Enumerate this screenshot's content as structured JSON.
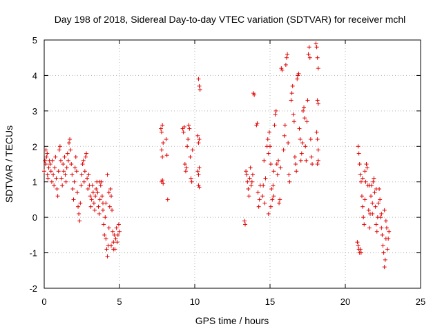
{
  "chart_data": {
    "type": "scatter",
    "title": "Day 198 of 2018, Sidereal Day-to-day VTEC variation (SDTVAR) for receiver mchl",
    "xlabel": "GPS time / hours",
    "ylabel": "SDTVAR / TECUs",
    "xlim": [
      0,
      25
    ],
    "ylim": [
      -2,
      5
    ],
    "xticks": [
      "0",
      "5",
      "10",
      "15",
      "20",
      "25"
    ],
    "yticks": [
      "-2",
      "-1",
      "0",
      "1",
      "2",
      "3",
      "4",
      "5"
    ],
    "grid": true,
    "marker": "+",
    "color": "#e00000",
    "series": [
      {
        "name": "SDTVAR",
        "points": [
          [
            0.0,
            1.3
          ],
          [
            0.05,
            1.6
          ],
          [
            0.1,
            1.5
          ],
          [
            0.12,
            1.9
          ],
          [
            0.15,
            1.7
          ],
          [
            0.2,
            1.8
          ],
          [
            0.22,
            1.2
          ],
          [
            0.25,
            1.1
          ],
          [
            0.3,
            1.4
          ],
          [
            0.35,
            1.6
          ],
          [
            0.4,
            1.5
          ],
          [
            0.45,
            1.3
          ],
          [
            0.5,
            1.0
          ],
          [
            0.55,
            1.6
          ],
          [
            0.6,
            1.2
          ],
          [
            0.65,
            0.9
          ],
          [
            0.7,
            1.4
          ],
          [
            0.75,
            1.7
          ],
          [
            0.8,
            1.1
          ],
          [
            0.85,
            0.8
          ],
          [
            0.9,
            0.6
          ],
          [
            0.95,
            1.3
          ],
          [
            1.0,
            1.9
          ],
          [
            1.05,
            2.0
          ],
          [
            1.1,
            1.6
          ],
          [
            1.15,
            1.1
          ],
          [
            1.2,
            0.9
          ],
          [
            1.25,
            1.5
          ],
          [
            1.3,
            1.3
          ],
          [
            1.35,
            1.7
          ],
          [
            1.4,
            1.2
          ],
          [
            1.45,
            1.0
          ],
          [
            1.5,
            1.4
          ],
          [
            1.55,
            1.8
          ],
          [
            1.6,
            1.6
          ],
          [
            1.65,
            2.1
          ],
          [
            1.7,
            2.2
          ],
          [
            1.75,
            1.9
          ],
          [
            1.8,
            1.5
          ],
          [
            1.85,
            1.2
          ],
          [
            1.9,
            0.8
          ],
          [
            1.95,
            0.5
          ],
          [
            2.0,
            1.0
          ],
          [
            2.05,
            1.4
          ],
          [
            2.1,
            1.7
          ],
          [
            2.15,
            1.3
          ],
          [
            2.2,
            0.7
          ],
          [
            2.25,
            0.3
          ],
          [
            2.3,
            0.1
          ],
          [
            2.35,
            -0.1
          ],
          [
            2.4,
            0.4
          ],
          [
            2.45,
            0.9
          ],
          [
            2.5,
            1.2
          ],
          [
            2.55,
            1.5
          ],
          [
            2.6,
            1.6
          ],
          [
            2.65,
            1.0
          ],
          [
            2.7,
            1.3
          ],
          [
            2.75,
            1.7
          ],
          [
            2.8,
            1.8
          ],
          [
            2.85,
            1.1
          ],
          [
            2.9,
            0.8
          ],
          [
            2.95,
            1.2
          ],
          [
            3.0,
            0.9
          ],
          [
            3.05,
            0.6
          ],
          [
            3.1,
            0.3
          ],
          [
            3.15,
            0.5
          ],
          [
            3.2,
            0.9
          ],
          [
            3.25,
            0.7
          ],
          [
            3.3,
            0.4
          ],
          [
            3.35,
            0.2
          ],
          [
            3.4,
            0.6
          ],
          [
            3.45,
            0.8
          ],
          [
            3.5,
            1.0
          ],
          [
            3.55,
            0.7
          ],
          [
            3.6,
            0.3
          ],
          [
            3.65,
            0.1
          ],
          [
            3.7,
            0.5
          ],
          [
            3.75,
            0.9
          ],
          [
            3.8,
            1.0
          ],
          [
            3.85,
            0.6
          ],
          [
            3.9,
            0.2
          ],
          [
            3.95,
            -0.2
          ],
          [
            4.0,
            -0.5
          ],
          [
            4.05,
            0.0
          ],
          [
            4.1,
            -0.6
          ],
          [
            4.15,
            -0.9
          ],
          [
            4.2,
            -1.1
          ],
          [
            4.25,
            -0.8
          ],
          [
            4.3,
            -0.3
          ],
          [
            4.35,
            0.3
          ],
          [
            4.4,
            0.8
          ],
          [
            4.45,
            0.6
          ],
          [
            4.5,
            0.2
          ],
          [
            4.55,
            -0.4
          ],
          [
            4.6,
            -0.7
          ],
          [
            4.65,
            -0.5
          ],
          [
            4.7,
            -0.9
          ],
          [
            4.75,
            -0.6
          ],
          [
            4.8,
            -0.3
          ],
          [
            4.85,
            -0.7
          ],
          [
            4.9,
            -0.5
          ],
          [
            4.95,
            -0.2
          ],
          [
            5.0,
            -0.4
          ],
          [
            4.2,
            1.2
          ],
          [
            4.3,
            0.7
          ],
          [
            4.1,
            0.4
          ],
          [
            3.7,
            1.0
          ],
          [
            3.9,
            0.4
          ],
          [
            4.45,
            -0.8
          ],
          [
            4.6,
            -0.9
          ],
          [
            7.75,
            2.5
          ],
          [
            7.8,
            2.4
          ],
          [
            7.85,
            2.6
          ],
          [
            7.8,
            1.9
          ],
          [
            7.85,
            1.7
          ],
          [
            7.9,
            2.1
          ],
          [
            7.8,
            1.0
          ],
          [
            7.85,
            1.05
          ],
          [
            7.9,
            0.95
          ],
          [
            8.1,
            2.2
          ],
          [
            8.15,
            1.75
          ],
          [
            8.2,
            0.5
          ],
          [
            9.2,
            2.5
          ],
          [
            9.25,
            2.4
          ],
          [
            9.3,
            2.55
          ],
          [
            9.35,
            1.5
          ],
          [
            9.4,
            1.3
          ],
          [
            9.45,
            1.4
          ],
          [
            9.5,
            2.0
          ],
          [
            9.55,
            2.2
          ],
          [
            9.6,
            2.6
          ],
          [
            9.65,
            2.5
          ],
          [
            9.7,
            1.7
          ],
          [
            9.75,
            1.1
          ],
          [
            9.8,
            1.0
          ],
          [
            9.85,
            1.9
          ],
          [
            10.25,
            3.9
          ],
          [
            10.3,
            3.7
          ],
          [
            10.35,
            3.6
          ],
          [
            10.2,
            2.3
          ],
          [
            10.25,
            2.1
          ],
          [
            10.3,
            2.2
          ],
          [
            10.2,
            1.3
          ],
          [
            10.25,
            1.2
          ],
          [
            10.3,
            1.4
          ],
          [
            10.25,
            0.9
          ],
          [
            10.3,
            0.85
          ],
          [
            13.3,
            -0.1
          ],
          [
            13.35,
            -0.2
          ],
          [
            13.4,
            1.3
          ],
          [
            13.45,
            1.2
          ],
          [
            13.5,
            1.0
          ],
          [
            13.55,
            0.8
          ],
          [
            13.6,
            0.6
          ],
          [
            13.65,
            1.1
          ],
          [
            13.7,
            1.4
          ],
          [
            13.75,
            0.9
          ],
          [
            13.8,
            1.0
          ],
          [
            13.85,
            1.2
          ],
          [
            13.9,
            3.5
          ],
          [
            13.95,
            3.45
          ],
          [
            14.1,
            2.6
          ],
          [
            14.15,
            2.65
          ],
          [
            14.2,
            0.7
          ],
          [
            14.25,
            0.3
          ],
          [
            14.3,
            0.5
          ],
          [
            14.35,
            0.9
          ],
          [
            14.6,
            1.6
          ],
          [
            14.7,
            1.1
          ],
          [
            14.8,
            2.0
          ],
          [
            14.85,
            2.2
          ],
          [
            14.9,
            1.8
          ],
          [
            14.95,
            2.4
          ],
          [
            15.0,
            2.0
          ],
          [
            15.05,
            1.5
          ],
          [
            15.1,
            0.8
          ],
          [
            15.15,
            0.5
          ],
          [
            15.2,
            0.9
          ],
          [
            15.25,
            1.3
          ],
          [
            15.3,
            2.6
          ],
          [
            15.35,
            2.9
          ],
          [
            15.4,
            3.0
          ],
          [
            15.45,
            1.5
          ],
          [
            15.5,
            1.2
          ],
          [
            15.55,
            1.6
          ],
          [
            15.6,
            0.4
          ],
          [
            15.65,
            0.5
          ],
          [
            15.7,
            1.4
          ],
          [
            15.75,
            4.2
          ],
          [
            15.8,
            4.15
          ],
          [
            15.9,
            1.9
          ],
          [
            15.95,
            2.3
          ],
          [
            16.0,
            2.6
          ],
          [
            16.05,
            4.3
          ],
          [
            16.1,
            4.5
          ],
          [
            16.15,
            4.6
          ],
          [
            16.2,
            2.1
          ],
          [
            16.25,
            1.2
          ],
          [
            16.3,
            1.0
          ],
          [
            16.4,
            3.3
          ],
          [
            16.45,
            3.5
          ],
          [
            16.5,
            3.7
          ],
          [
            16.55,
            2.9
          ],
          [
            16.6,
            2.7
          ],
          [
            16.65,
            1.7
          ],
          [
            16.7,
            1.5
          ],
          [
            16.75,
            1.3
          ],
          [
            16.8,
            3.9
          ],
          [
            16.85,
            4.0
          ],
          [
            16.9,
            4.05
          ],
          [
            16.95,
            2.5
          ],
          [
            17.0,
            2.2
          ],
          [
            17.05,
            1.6
          ],
          [
            17.1,
            1.8
          ],
          [
            17.15,
            2.1
          ],
          [
            17.2,
            3.0
          ],
          [
            17.25,
            3.1
          ],
          [
            17.3,
            2.8
          ],
          [
            17.35,
            2.0
          ],
          [
            17.4,
            1.6
          ],
          [
            17.45,
            2.7
          ],
          [
            17.5,
            3.3
          ],
          [
            17.55,
            4.6
          ],
          [
            17.6,
            4.8
          ],
          [
            17.65,
            4.5
          ],
          [
            17.7,
            2.2
          ],
          [
            17.75,
            1.7
          ],
          [
            17.8,
            1.5
          ],
          [
            18.05,
            4.9
          ],
          [
            18.1,
            4.8
          ],
          [
            18.15,
            4.5
          ],
          [
            18.2,
            4.2
          ],
          [
            18.15,
            3.3
          ],
          [
            18.2,
            3.2
          ],
          [
            18.1,
            2.4
          ],
          [
            18.15,
            2.2
          ],
          [
            18.2,
            1.9
          ],
          [
            18.15,
            1.5
          ],
          [
            18.2,
            1.6
          ],
          [
            14.5,
            0.6
          ],
          [
            14.65,
            0.4
          ],
          [
            14.55,
            0.9
          ],
          [
            15.25,
            0.6
          ],
          [
            15.05,
            0.3
          ],
          [
            14.9,
            0.1
          ],
          [
            20.8,
            -0.7
          ],
          [
            20.85,
            -0.8
          ],
          [
            20.9,
            -0.9
          ],
          [
            20.95,
            -1.0
          ],
          [
            21.0,
            -0.9
          ],
          [
            21.05,
            -1.0
          ],
          [
            20.85,
            2.0
          ],
          [
            20.9,
            1.8
          ],
          [
            20.95,
            1.5
          ],
          [
            21.0,
            1.2
          ],
          [
            21.05,
            1.0
          ],
          [
            21.1,
            0.6
          ],
          [
            21.15,
            0.3
          ],
          [
            21.2,
            0.0
          ],
          [
            21.25,
            -0.2
          ],
          [
            21.3,
            0.5
          ],
          [
            21.35,
            1.0
          ],
          [
            21.4,
            1.5
          ],
          [
            21.45,
            1.4
          ],
          [
            21.5,
            0.9
          ],
          [
            21.55,
            0.2
          ],
          [
            21.6,
            -0.3
          ],
          [
            21.65,
            0.1
          ],
          [
            21.7,
            0.6
          ],
          [
            21.75,
            0.9
          ],
          [
            21.8,
            0.4
          ],
          [
            21.85,
            1.0
          ],
          [
            21.9,
            1.1
          ],
          [
            21.95,
            0.7
          ],
          [
            22.0,
            0.3
          ],
          [
            22.05,
            -0.2
          ],
          [
            22.1,
            -0.4
          ],
          [
            22.15,
            0.0
          ],
          [
            22.2,
            0.4
          ],
          [
            22.25,
            0.8
          ],
          [
            22.3,
            0.5
          ],
          [
            22.35,
            0.0
          ],
          [
            22.4,
            -0.3
          ],
          [
            22.45,
            -0.5
          ],
          [
            22.5,
            -0.8
          ],
          [
            22.55,
            -1.0
          ],
          [
            22.6,
            -1.4
          ],
          [
            22.65,
            -1.2
          ],
          [
            22.7,
            -0.6
          ],
          [
            22.75,
            -0.3
          ],
          [
            22.8,
            -0.9
          ],
          [
            22.85,
            -0.6
          ],
          [
            22.9,
            -0.4
          ],
          [
            21.6,
            0.9
          ],
          [
            21.3,
            1.3
          ],
          [
            21.15,
            1.1
          ],
          [
            22.05,
            0.8
          ],
          [
            22.6,
            0.2
          ],
          [
            22.7,
            -0.1
          ],
          [
            21.8,
            0.1
          ],
          [
            22.4,
            0.1
          ]
        ]
      }
    ]
  }
}
